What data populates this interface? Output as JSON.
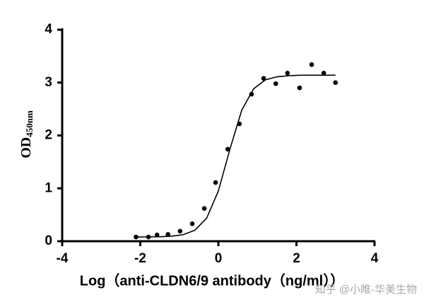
{
  "chart_data": {
    "type": "scatter",
    "y_label": "OD",
    "y_label_sub": "450nm",
    "x_label": "Log（anti-CLDN6/9 antibody（ng/ml））",
    "watermark": "知乎 @小睢-华美生物",
    "xlim": [
      -4,
      4
    ],
    "xticks": [
      -4,
      -2,
      0,
      2,
      4
    ],
    "ylim": [
      0,
      4
    ],
    "yticks": [
      0,
      1,
      2,
      3,
      4
    ],
    "color": "#000000",
    "x": [
      -2.11,
      -1.79,
      -1.57,
      -1.29,
      -0.98,
      -0.67,
      -0.36,
      -0.07,
      0.24,
      0.54,
      0.85,
      1.16,
      1.47,
      1.77,
      2.08,
      2.39,
      2.7,
      3.0
    ],
    "values": [
      0.08,
      0.08,
      0.12,
      0.13,
      0.19,
      0.33,
      0.62,
      1.11,
      1.74,
      2.22,
      2.78,
      3.08,
      2.98,
      3.18,
      2.9,
      3.34,
      3.18,
      3.0
    ],
    "curve": {
      "x": [
        -2.1,
        -1.8,
        -1.5,
        -1.2,
        -0.9,
        -0.6,
        -0.3,
        0,
        0.3,
        0.6,
        0.9,
        1.2,
        1.5,
        1.8,
        2.1,
        2.4,
        2.7,
        3.0
      ],
      "values": [
        0.08,
        0.082,
        0.085,
        0.095,
        0.124,
        0.208,
        0.436,
        0.95,
        1.75,
        2.48,
        2.88,
        3.05,
        3.11,
        3.13,
        3.14,
        3.14,
        3.14,
        3.14
      ]
    }
  }
}
